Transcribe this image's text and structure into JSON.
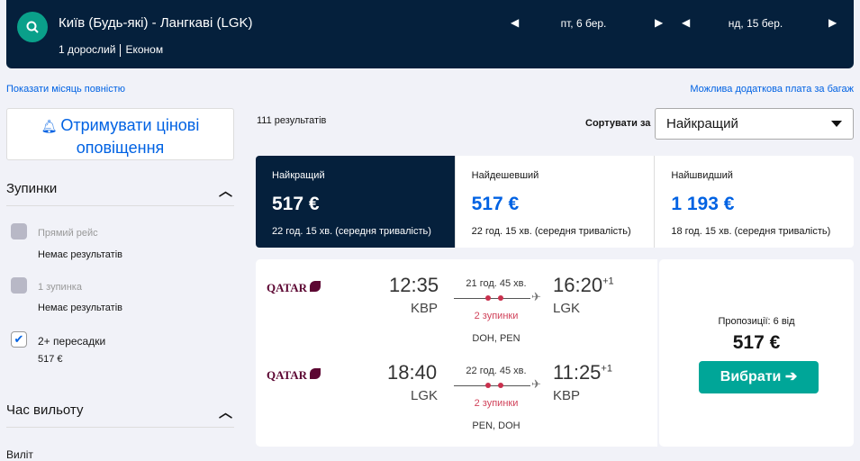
{
  "header": {
    "route": "Київ (Будь-які) - Лангкаві (LGK)",
    "passengers": "1 дорослий",
    "cabin": "Економ",
    "depart_date": "пт, 6 бер.",
    "return_date": "нд, 15 бер."
  },
  "links": {
    "show_month": "Показати місяць повністю",
    "baggage": "Можлива додаткова плата за багаж"
  },
  "alert_button": "Отримувати цінові оповіщення",
  "filters": {
    "stops_title": "Зупинки",
    "options": [
      {
        "label": "Прямий рейс",
        "sub": "Немає результатів",
        "checked": false,
        "disabled": true
      },
      {
        "label": "1 зупинка",
        "sub": "Немає результатів",
        "checked": false,
        "disabled": true
      },
      {
        "label": "2+ пересадки",
        "sub": "517 €",
        "checked": true,
        "disabled": false
      }
    ],
    "time_title": "Час вильоту",
    "time_sub": "Виліт"
  },
  "results": {
    "count": "111 результатів",
    "sort_label": "Сортувати за",
    "sort_value": "Найкращий"
  },
  "tabs": [
    {
      "title": "Найкращий",
      "price": "517 €",
      "duration": "22 год. 15 хв. (середня тривалість)"
    },
    {
      "title": "Найдешевший",
      "price": "517 €",
      "duration": "22 год. 15 хв. (середня тривалість)"
    },
    {
      "title": "Найшвидший",
      "price": "1 193 €",
      "duration": "18 год. 15 хв. (середня тривалість)"
    }
  ],
  "itinerary": {
    "legs": [
      {
        "airline": "QATAR",
        "dep_time": "12:35",
        "dep_airport": "KBP",
        "duration": "21 год. 45 хв.",
        "stops": "2 зупинки",
        "via": "DOH, PEN",
        "arr_time": "16:20",
        "arr_plus": "+1",
        "arr_airport": "LGK"
      },
      {
        "airline": "QATAR",
        "dep_time": "18:40",
        "dep_airport": "LGK",
        "duration": "22 год. 45 хв.",
        "stops": "2 зупинки",
        "via": "PEN, DOH",
        "arr_time": "11:25",
        "arr_plus": "+1",
        "arr_airport": "KBP"
      }
    ],
    "offers": "Пропозиції: 6 від",
    "price": "517 €",
    "select": "Вибрати ➔"
  },
  "colors": {
    "header": "#05203c",
    "accent": "#0062e3",
    "select": "#00a698",
    "stops": "#d1435b"
  }
}
